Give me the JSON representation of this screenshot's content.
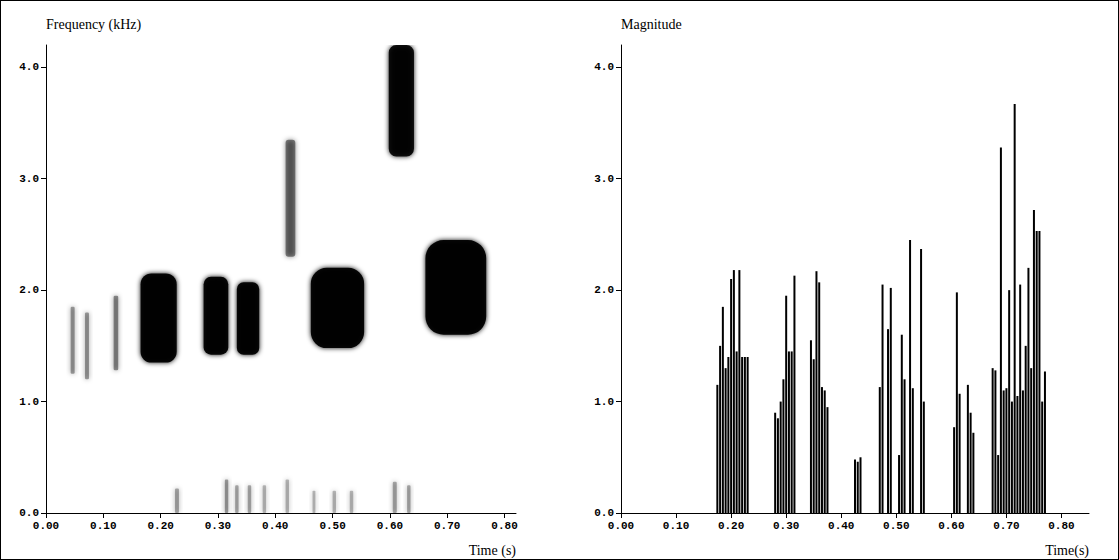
{
  "chart_data": [
    {
      "type": "spectrogram",
      "y_label": "Frequency (kHz)",
      "x_label": "Time (s)",
      "xlim": [
        0,
        0.82
      ],
      "ylim": [
        0,
        4.2
      ],
      "xticks": [
        {
          "value": 0,
          "label": "0.00"
        },
        {
          "value": 0.1,
          "label": "0.10"
        },
        {
          "value": 0.2,
          "label": "0.20"
        },
        {
          "value": 0.3,
          "label": "0.30"
        },
        {
          "value": 0.4,
          "label": "0.40"
        },
        {
          "value": 0.5,
          "label": "0.50"
        },
        {
          "value": 0.6,
          "label": "0.60"
        },
        {
          "value": 0.7,
          "label": "0.70"
        },
        {
          "value": 0.8,
          "label": "0.80"
        }
      ],
      "yticks": [
        {
          "value": 0,
          "label": "0.0"
        },
        {
          "value": 1,
          "label": "1.0"
        },
        {
          "value": 2,
          "label": "2.0"
        },
        {
          "value": 3,
          "label": "3.0"
        },
        {
          "value": 4,
          "label": "4.0"
        }
      ],
      "grid": false,
      "color": "#000000",
      "bands": {
        "t_start": [
          0.043,
          0.068,
          0.118,
          0.165,
          0.275,
          0.333,
          0.418,
          0.462,
          0.598,
          0.662,
          0.225,
          0.312,
          0.33,
          0.352,
          0.378,
          0.418,
          0.465,
          0.5,
          0.53,
          0.605,
          0.63
        ],
        "t_end": [
          0.05,
          0.075,
          0.126,
          0.228,
          0.318,
          0.372,
          0.435,
          0.555,
          0.642,
          0.768,
          0.232,
          0.318,
          0.336,
          0.358,
          0.384,
          0.424,
          0.47,
          0.506,
          0.536,
          0.612,
          0.636
        ],
        "f_low": [
          1.25,
          1.2,
          1.28,
          1.35,
          1.42,
          1.42,
          2.3,
          1.48,
          3.2,
          1.6,
          0,
          0,
          0,
          0,
          0,
          0,
          0,
          0,
          0,
          0,
          0
        ],
        "f_high": [
          1.85,
          1.8,
          1.95,
          2.15,
          2.12,
          2.07,
          3.35,
          2.2,
          4.2,
          2.45,
          0.22,
          0.3,
          0.25,
          0.25,
          0.25,
          0.3,
          0.2,
          0.2,
          0.2,
          0.28,
          0.25
        ],
        "level": [
          0.35,
          0.35,
          0.4,
          0.95,
          0.95,
          0.95,
          0.45,
          0.95,
          0.9,
          0.95,
          0.3,
          0.35,
          0.3,
          0.3,
          0.25,
          0.25,
          0.25,
          0.25,
          0.25,
          0.3,
          0.3
        ]
      }
    },
    {
      "type": "bar",
      "y_label": "Magnitude",
      "x_label": "Time(s)",
      "xlim": [
        0,
        0.85
      ],
      "ylim": [
        0,
        4.2
      ],
      "xticks": [
        {
          "value": 0,
          "label": "0.00"
        },
        {
          "value": 0.1,
          "label": "0.10"
        },
        {
          "value": 0.2,
          "label": "0.20"
        },
        {
          "value": 0.3,
          "label": "0.30"
        },
        {
          "value": 0.4,
          "label": "0.40"
        },
        {
          "value": 0.5,
          "label": "0.50"
        },
        {
          "value": 0.6,
          "label": "0.60"
        },
        {
          "value": 0.7,
          "label": "0.70"
        },
        {
          "value": 0.8,
          "label": "0.80"
        }
      ],
      "yticks": [
        {
          "value": 0,
          "label": "0.0"
        },
        {
          "value": 1,
          "label": "1.0"
        },
        {
          "value": 2,
          "label": "2.0"
        },
        {
          "value": 3,
          "label": "3.0"
        },
        {
          "value": 4,
          "label": "4.0"
        }
      ],
      "grid": false,
      "color": "#000000",
      "x": [
        0.175,
        0.18,
        0.185,
        0.19,
        0.195,
        0.2,
        0.205,
        0.21,
        0.215,
        0.22,
        0.225,
        0.23,
        0.28,
        0.285,
        0.29,
        0.295,
        0.3,
        0.305,
        0.31,
        0.315,
        0.345,
        0.35,
        0.355,
        0.36,
        0.365,
        0.37,
        0.375,
        0.425,
        0.43,
        0.435,
        0.47,
        0.475,
        0.485,
        0.49,
        0.505,
        0.51,
        0.515,
        0.525,
        0.53,
        0.545,
        0.55,
        0.605,
        0.61,
        0.615,
        0.63,
        0.635,
        0.64,
        0.675,
        0.68,
        0.685,
        0.69,
        0.695,
        0.7,
        0.705,
        0.71,
        0.715,
        0.72,
        0.725,
        0.73,
        0.735,
        0.74,
        0.745,
        0.75,
        0.755,
        0.76,
        0.765,
        0.77
      ],
      "values": [
        1.15,
        1.5,
        1.85,
        1.3,
        1.4,
        2.1,
        2.18,
        1.45,
        2.18,
        1.4,
        1.4,
        1.4,
        0.9,
        0.85,
        1.0,
        1.2,
        1.95,
        1.45,
        1.45,
        2.13,
        1.55,
        1.38,
        2.17,
        2.07,
        1.13,
        1.1,
        0.95,
        0.48,
        0.46,
        0.5,
        1.13,
        2.05,
        1.65,
        2.02,
        0.52,
        1.6,
        1.2,
        2.45,
        1.12,
        2.37,
        1.0,
        0.77,
        1.98,
        1.07,
        1.15,
        0.9,
        0.72,
        1.3,
        1.28,
        0.52,
        3.28,
        1.1,
        1.12,
        2.0,
        1.0,
        3.67,
        1.05,
        2.05,
        1.1,
        1.5,
        2.2,
        1.3,
        2.72,
        2.53,
        2.53,
        1.0,
        1.27
      ]
    }
  ]
}
